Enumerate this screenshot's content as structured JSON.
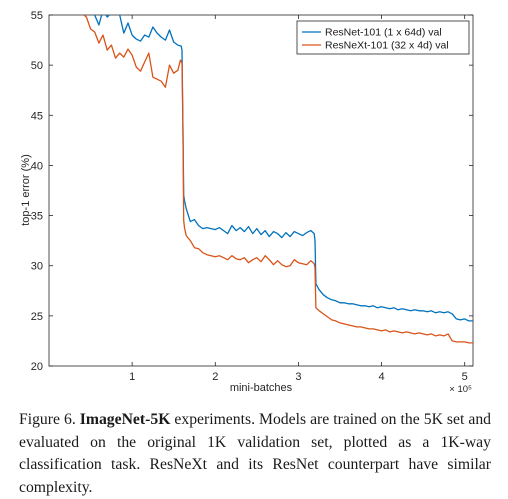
{
  "chart_data": {
    "type": "line",
    "title": "",
    "xlabel": "mini-batches",
    "ylabel": "top-1 error (%)",
    "x_exponent_label": "× 10⁵",
    "xlim": [
      0,
      5.1
    ],
    "ylim": [
      20,
      55
    ],
    "xticks": [
      1,
      2,
      3,
      4,
      5
    ],
    "yticks": [
      20,
      25,
      30,
      35,
      40,
      45,
      50,
      55
    ],
    "grid": false,
    "legend_position": "top-right",
    "series": [
      {
        "name": "ResNet-101 (1 x 64d) val",
        "color": "#0072bd",
        "x": [
          0.55,
          0.6,
          0.65,
          0.7,
          0.75,
          0.8,
          0.85,
          0.9,
          0.95,
          1.0,
          1.05,
          1.1,
          1.15,
          1.2,
          1.25,
          1.3,
          1.35,
          1.4,
          1.45,
          1.5,
          1.55,
          1.59,
          1.6,
          1.61,
          1.62,
          1.63,
          1.65,
          1.7,
          1.75,
          1.8,
          1.85,
          1.9,
          1.95,
          2.0,
          2.05,
          2.1,
          2.15,
          2.2,
          2.25,
          2.3,
          2.35,
          2.4,
          2.45,
          2.5,
          2.55,
          2.6,
          2.65,
          2.7,
          2.75,
          2.8,
          2.85,
          2.9,
          2.95,
          3.0,
          3.05,
          3.1,
          3.15,
          3.19,
          3.2,
          3.21,
          3.25,
          3.3,
          3.35,
          3.4,
          3.45,
          3.5,
          3.55,
          3.6,
          3.65,
          3.7,
          3.75,
          3.8,
          3.85,
          3.9,
          3.95,
          4.0,
          4.05,
          4.1,
          4.15,
          4.2,
          4.25,
          4.3,
          4.35,
          4.4,
          4.45,
          4.5,
          4.55,
          4.6,
          4.65,
          4.7,
          4.75,
          4.8,
          4.85,
          4.9,
          4.95,
          5.0,
          5.05,
          5.1
        ],
        "y": [
          55.0,
          54.0,
          55.5,
          54.8,
          55.2,
          56.0,
          55.0,
          53.2,
          54.2,
          53.0,
          52.6,
          52.4,
          53.0,
          52.8,
          53.8,
          53.2,
          52.8,
          52.5,
          53.5,
          52.3,
          52.0,
          51.9,
          51.5,
          44.0,
          37.0,
          36.5,
          35.7,
          34.4,
          34.6,
          34.0,
          33.7,
          33.8,
          33.7,
          33.6,
          33.8,
          33.5,
          33.2,
          34.0,
          33.5,
          33.8,
          33.4,
          33.9,
          33.2,
          33.7,
          33.1,
          33.5,
          32.9,
          33.4,
          33.2,
          32.8,
          33.3,
          32.9,
          33.4,
          33.2,
          33.0,
          33.3,
          33.5,
          33.2,
          32.5,
          28.2,
          27.6,
          27.1,
          26.8,
          26.6,
          26.5,
          26.3,
          26.3,
          26.2,
          26.2,
          26.1,
          26.0,
          26.0,
          25.9,
          26.0,
          25.8,
          25.9,
          25.8,
          25.7,
          25.8,
          25.6,
          25.7,
          25.6,
          25.5,
          25.6,
          25.5,
          25.5,
          25.4,
          25.5,
          25.3,
          25.4,
          25.3,
          25.4,
          25.2,
          24.7,
          24.6,
          24.7,
          24.5,
          24.5
        ]
      },
      {
        "name": "ResNeXt-101 (32 x 4d) val",
        "color": "#d95319",
        "x": [
          0.42,
          0.45,
          0.5,
          0.55,
          0.6,
          0.65,
          0.7,
          0.75,
          0.8,
          0.85,
          0.9,
          0.95,
          1.0,
          1.05,
          1.1,
          1.15,
          1.2,
          1.25,
          1.3,
          1.35,
          1.4,
          1.45,
          1.5,
          1.55,
          1.58,
          1.6,
          1.61,
          1.62,
          1.63,
          1.65,
          1.7,
          1.75,
          1.8,
          1.85,
          1.9,
          1.95,
          2.0,
          2.05,
          2.1,
          2.15,
          2.2,
          2.25,
          2.3,
          2.35,
          2.4,
          2.45,
          2.5,
          2.55,
          2.6,
          2.65,
          2.7,
          2.75,
          2.8,
          2.85,
          2.9,
          2.95,
          3.0,
          3.05,
          3.1,
          3.15,
          3.19,
          3.2,
          3.21,
          3.25,
          3.3,
          3.35,
          3.4,
          3.45,
          3.5,
          3.55,
          3.6,
          3.65,
          3.7,
          3.75,
          3.8,
          3.85,
          3.9,
          3.95,
          4.0,
          4.05,
          4.1,
          4.15,
          4.2,
          4.25,
          4.3,
          4.35,
          4.4,
          4.45,
          4.5,
          4.55,
          4.6,
          4.65,
          4.7,
          4.75,
          4.8,
          4.85,
          4.9,
          4.95,
          5.0,
          5.05,
          5.1
        ],
        "y": [
          55.0,
          54.8,
          53.6,
          53.3,
          52.2,
          53.0,
          51.5,
          52.0,
          50.7,
          51.2,
          50.8,
          51.6,
          51.0,
          49.8,
          49.4,
          50.3,
          51.2,
          48.8,
          48.6,
          48.4,
          47.8,
          50.0,
          49.2,
          49.5,
          50.5,
          50.2,
          44.0,
          34.5,
          33.8,
          33.0,
          32.5,
          31.8,
          31.7,
          31.3,
          31.1,
          31.0,
          30.9,
          31.0,
          30.8,
          30.6,
          31.0,
          30.7,
          30.6,
          30.8,
          30.3,
          30.6,
          30.8,
          30.4,
          31.0,
          30.6,
          30.1,
          30.5,
          30.1,
          29.9,
          30.0,
          30.6,
          30.3,
          30.2,
          30.1,
          30.5,
          30.2,
          29.8,
          25.8,
          25.5,
          25.2,
          24.9,
          24.6,
          24.5,
          24.3,
          24.2,
          24.1,
          24.0,
          23.9,
          23.9,
          23.8,
          23.7,
          23.7,
          23.6,
          23.5,
          23.6,
          23.4,
          23.5,
          23.4,
          23.3,
          23.4,
          23.3,
          23.2,
          23.3,
          23.2,
          23.1,
          23.2,
          23.0,
          23.1,
          23.0,
          23.2,
          22.5,
          22.4,
          22.4,
          22.4,
          22.3,
          22.3
        ]
      }
    ]
  },
  "caption": {
    "figure_label": "Figure 6.",
    "bold_title": "ImageNet-5K",
    "body": " experiments. Models are trained on the 5K set and evaluated on the original 1K validation set, plotted as a 1K-way classification task. ResNeXt and its ResNet counterpart have similar complexity."
  }
}
